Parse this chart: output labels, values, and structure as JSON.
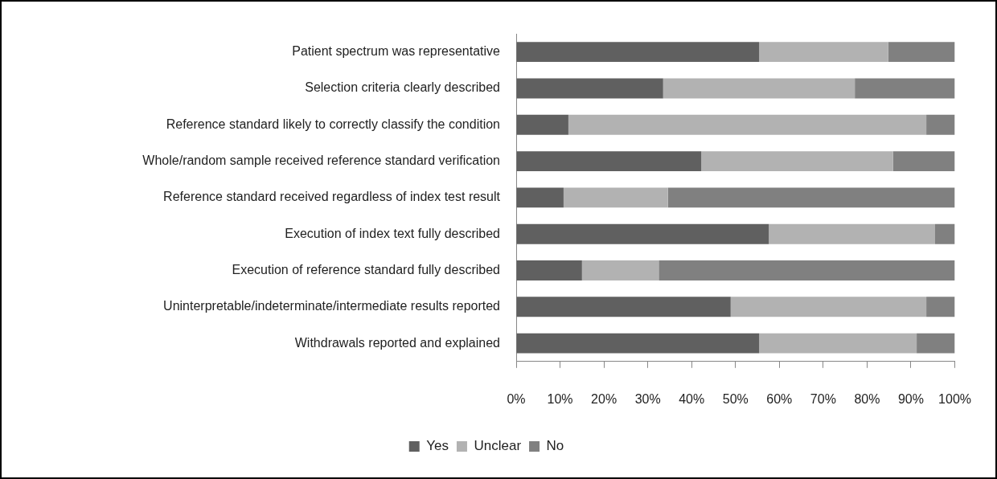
{
  "chart_data": {
    "type": "bar",
    "orientation": "horizontal",
    "stacked": true,
    "categories": [
      "Patient spectrum was representative",
      "Selection criteria clearly described",
      "Reference standard likely to correctly classify the condition",
      "Whole/random sample received reference standard verification",
      "Reference standard received regardless of index test result",
      "Execution of index text fully described",
      "Execution of reference standard fully described",
      "Uninterpretable/indeterminate/intermediate results reported",
      "Withdrawals reported and explained"
    ],
    "series": [
      {
        "name": "Yes",
        "color": "#606060",
        "values": [
          55.4,
          33.5,
          11.9,
          42.2,
          10.8,
          57.6,
          15.0,
          48.9,
          55.4
        ]
      },
      {
        "name": "Unclear",
        "color": "#b2b2b2",
        "values": [
          29.4,
          43.7,
          81.6,
          43.7,
          23.8,
          37.9,
          17.5,
          44.6,
          35.9
        ]
      },
      {
        "name": "No",
        "color": "#808080",
        "values": [
          15.2,
          22.8,
          6.5,
          14.1,
          65.4,
          4.5,
          67.5,
          6.5,
          8.7
        ]
      }
    ],
    "xlim": [
      0,
      100
    ],
    "xticks": [
      {
        "value": 0,
        "label": "0%"
      },
      {
        "value": 10,
        "label": "10%"
      },
      {
        "value": 20,
        "label": "20%"
      },
      {
        "value": 30,
        "label": "30%"
      },
      {
        "value": 40,
        "label": "40%"
      },
      {
        "value": 50,
        "label": "50%"
      },
      {
        "value": 60,
        "label": "60%"
      },
      {
        "value": 70,
        "label": "70%"
      },
      {
        "value": 80,
        "label": "80%"
      },
      {
        "value": 90,
        "label": "90%"
      },
      {
        "value": 100,
        "label": "100%"
      }
    ],
    "grid": false,
    "legend": "bottom"
  }
}
